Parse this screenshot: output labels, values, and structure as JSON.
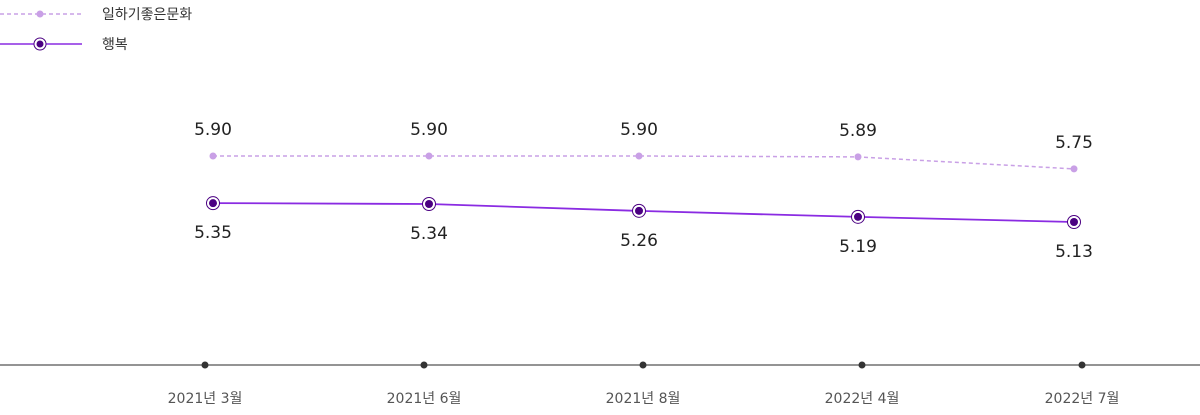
{
  "chart_data": {
    "type": "line",
    "x": [
      "2021년 3월",
      "2021년 6월",
      "2021년 8월",
      "2022년 4월",
      "2022년 7월"
    ],
    "series": [
      {
        "name": "일하기좋은문화",
        "values": [
          5.9,
          5.9,
          5.9,
          5.89,
          5.75
        ],
        "value_labels": [
          "5.90",
          "5.90",
          "5.90",
          "5.89",
          "5.75"
        ],
        "color": "#c9a0e6",
        "line_style": "dashed",
        "marker": "dot"
      },
      {
        "name": "행복",
        "values": [
          5.35,
          5.34,
          5.26,
          5.19,
          5.13
        ],
        "value_labels": [
          "5.35",
          "5.34",
          "5.26",
          "5.19",
          "5.13"
        ],
        "color": "#8a2be2",
        "marker_fill": "#4b0082",
        "line_style": "solid",
        "marker": "ringed-dot"
      }
    ],
    "title": "",
    "xlabel": "",
    "ylabel": "",
    "grid": false,
    "legend": "top-left",
    "axis_color": "#555555"
  }
}
